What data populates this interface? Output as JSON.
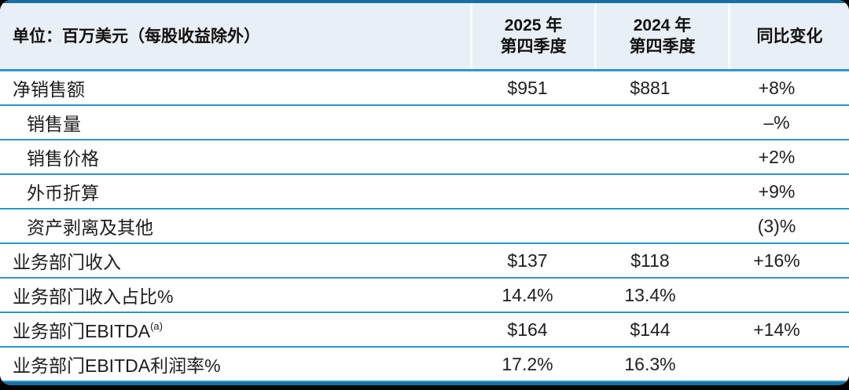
{
  "table": {
    "unit_label": "单位：百万美元（每股收益除外）",
    "columns": [
      {
        "line1": "2025 年",
        "line2": "第四季度"
      },
      {
        "line1": "2024 年",
        "line2": "第四季度"
      },
      {
        "line1": "同比变化"
      }
    ],
    "rows": [
      {
        "label": "净销售额",
        "q4_2025": "$951",
        "q4_2024": "$881",
        "yoy": "+8%"
      },
      {
        "label": "销售量",
        "q4_2025": "",
        "q4_2024": "",
        "yoy": "–%"
      },
      {
        "label": "销售价格",
        "q4_2025": "",
        "q4_2024": "",
        "yoy": "+2%"
      },
      {
        "label": "外币折算",
        "q4_2025": "",
        "q4_2024": "",
        "yoy": "+9%"
      },
      {
        "label": "资产剥离及其他",
        "q4_2025": "",
        "q4_2024": "",
        "yoy": "(3)%"
      },
      {
        "label": "业务部门收入",
        "q4_2025": "$137",
        "q4_2024": "$118",
        "yoy": "+16%"
      },
      {
        "label": "业务部门收入占比%",
        "q4_2025": "14.4%",
        "q4_2024": "13.4%",
        "yoy": ""
      },
      {
        "label": "业务部门EBITDA",
        "label_sup": "(a)",
        "q4_2025": "$164",
        "q4_2024": "$144",
        "yoy": "+14%"
      },
      {
        "label": "业务部门EBITDA利润率%",
        "q4_2025": "17.2%",
        "q4_2024": "16.3%",
        "yoy": ""
      }
    ],
    "colors": {
      "accent_bar": "#1b6ea1",
      "row_separator": "#2d96c9",
      "header_background": "#e9eff6",
      "text": "#1c1c1c",
      "page_background": "#000000"
    }
  }
}
